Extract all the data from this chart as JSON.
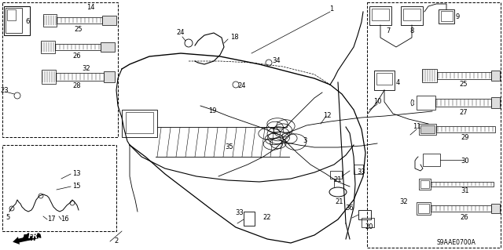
{
  "bg_color": "#ffffff",
  "fig_width": 6.4,
  "fig_height": 3.19,
  "dpi": 100,
  "watermark": "S9AAE0700A"
}
